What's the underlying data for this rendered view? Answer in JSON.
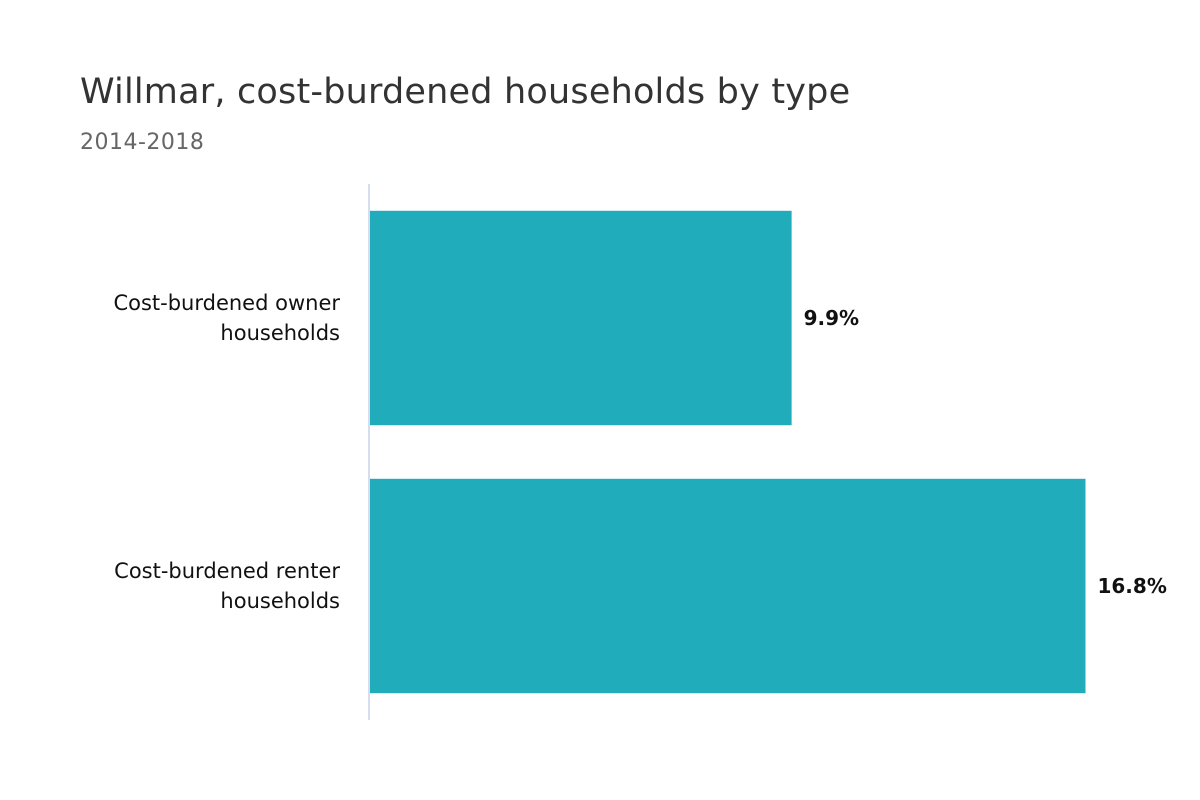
{
  "chart_data": {
    "type": "bar",
    "orientation": "horizontal",
    "title": "Willmar, cost-burdened households by type",
    "subtitle": "2014-2018",
    "categories": [
      [
        "Cost-burdened owner",
        "households"
      ],
      [
        "Cost-burdened renter",
        "households"
      ]
    ],
    "values": [
      9.9,
      16.8
    ],
    "data_labels": [
      "9.9%",
      "16.8%"
    ],
    "unit": "%",
    "xlim": [
      0,
      17
    ],
    "bar_color": "#20ACBB",
    "axis_color": "#C8D2E6",
    "grid": false,
    "legend": "none"
  }
}
